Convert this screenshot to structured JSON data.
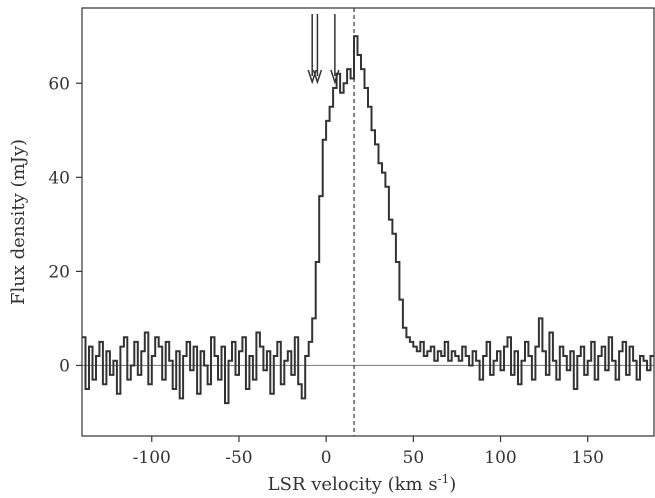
{
  "chart_data": {
    "type": "line",
    "style": "step",
    "title": "",
    "xlabel": "LSR velocity (km s",
    "xlabel_superscript": "-1",
    "xlabel_suffix": ")",
    "ylabel": "Flux density (mJy)",
    "xlim": [
      -140,
      188
    ],
    "ylim": [
      -15,
      76
    ],
    "xticks": [
      -100,
      -50,
      0,
      50,
      100,
      150
    ],
    "xtick_labels": [
      "-100",
      "-50",
      "0",
      "50",
      "100",
      "150"
    ],
    "yticks": [
      0,
      20,
      40,
      60
    ],
    "ytick_labels": [
      "0",
      "20",
      "40",
      "60"
    ],
    "grid": false,
    "legend": "none",
    "zero_line": 0,
    "systemic_velocity": 16,
    "arrow_velocities": [
      -8,
      -5,
      5
    ],
    "line_color": "#333333",
    "zero_line_color": "#888888",
    "series": [
      {
        "x": [
          -140,
          -138,
          -136,
          -134,
          -132,
          -130,
          -128,
          -126,
          -124,
          -122,
          -120,
          -118,
          -116,
          -114,
          -112,
          -110,
          -108,
          -106,
          -104,
          -102,
          -100,
          -98,
          -96,
          -94,
          -92,
          -90,
          -88,
          -86,
          -84,
          -82,
          -80,
          -78,
          -76,
          -74,
          -72,
          -70,
          -68,
          -66,
          -64,
          -62,
          -60,
          -58,
          -56,
          -54,
          -52,
          -50,
          -48,
          -46,
          -44,
          -42,
          -40,
          -38,
          -36,
          -34,
          -32,
          -30,
          -28,
          -26,
          -24,
          -22,
          -20,
          -18,
          -16,
          -14,
          -12,
          -10,
          -8,
          -6,
          -4,
          -2,
          0,
          2,
          4,
          6,
          8,
          10,
          12,
          14,
          16,
          18,
          20,
          22,
          24,
          26,
          28,
          30,
          32,
          34,
          36,
          38,
          40,
          42,
          44,
          46,
          48,
          50,
          52,
          54,
          56,
          58,
          60,
          62,
          64,
          66,
          68,
          70,
          72,
          74,
          76,
          78,
          80,
          82,
          84,
          86,
          88,
          90,
          92,
          94,
          96,
          98,
          100,
          102,
          104,
          106,
          108,
          110,
          112,
          114,
          116,
          118,
          120,
          122,
          124,
          126,
          128,
          130,
          132,
          134,
          136,
          138,
          140,
          142,
          144,
          146,
          148,
          150,
          152,
          154,
          156,
          158,
          160,
          162,
          164,
          166,
          168,
          170,
          172,
          174,
          176,
          178,
          180,
          182,
          184,
          186
        ],
        "y": [
          6,
          -5,
          4,
          -3,
          2,
          5,
          -4,
          3,
          -2,
          1,
          -6,
          4,
          6,
          -3,
          0,
          5,
          -2,
          3,
          7,
          -4,
          2,
          6,
          4,
          -3,
          5,
          1,
          -5,
          3,
          -7,
          2,
          5,
          -1,
          4,
          -6,
          3,
          0,
          -4,
          6,
          2,
          -3,
          4,
          -8,
          1,
          5,
          -2,
          3,
          6,
          -5,
          2,
          -3,
          7,
          4,
          -1,
          3,
          -6,
          2,
          5,
          -4,
          1,
          3,
          -2,
          6,
          -4,
          -7,
          2,
          5,
          10,
          22,
          36,
          48,
          52,
          55,
          59,
          62,
          58,
          60,
          63,
          61,
          70,
          66,
          63,
          59,
          55,
          50,
          47,
          43,
          41,
          38,
          31,
          28,
          22,
          14,
          8,
          6,
          5,
          4,
          3,
          5,
          2,
          3,
          4,
          1,
          3,
          2,
          5,
          1,
          3,
          2,
          1,
          4,
          2,
          0,
          3,
          1,
          -3,
          2,
          5,
          -2,
          1,
          3,
          -1,
          4,
          6,
          -2,
          3,
          -4,
          1,
          5,
          2,
          -3,
          4,
          10,
          3,
          -2,
          7,
          1,
          -3,
          4,
          2,
          -1,
          3,
          -5,
          2,
          4,
          -2,
          1,
          5,
          -3,
          2,
          4,
          -1,
          6,
          1,
          -3,
          3,
          5,
          -2,
          4,
          1,
          -3,
          2,
          1,
          -1,
          2
        ]
      }
    ]
  }
}
